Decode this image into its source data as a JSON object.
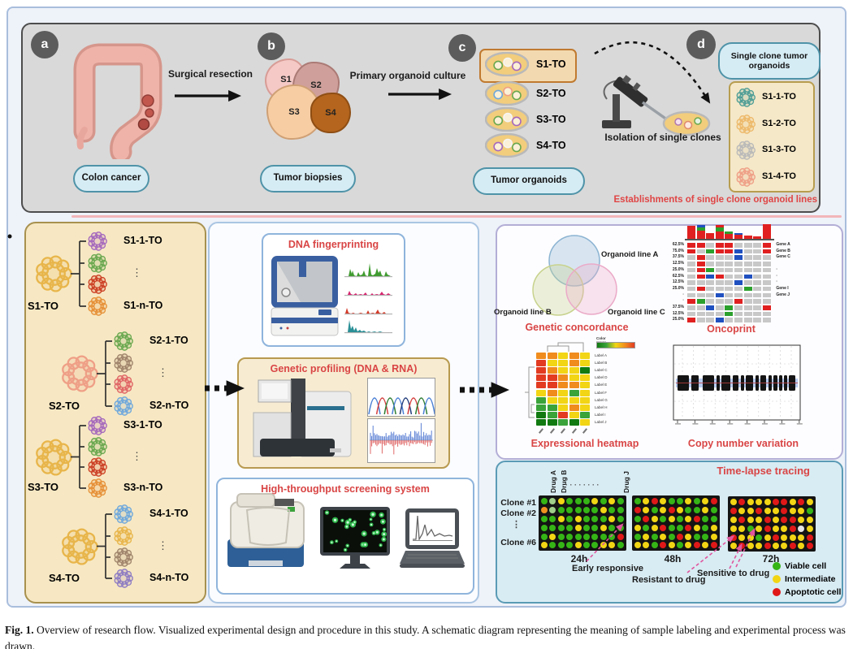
{
  "caption": {
    "label": "Fig. 1.",
    "text": "Overview of research flow. Visualized experimental design and procedure in this study. A schematic diagram representing the meaning of sample labeling and experimental process was drawn."
  },
  "colors": {
    "title_red": "#d94545",
    "pill_bg": "#d6ecf4",
    "pill_border": "#4f93a8",
    "note_red": "#e04545"
  },
  "top_panel": {
    "badge_a": "a",
    "badge_b": "b",
    "badge_c": "c",
    "badge_d": "d",
    "colon_label": "Colon cancer",
    "surgical_arrow_label": "Surgical resection",
    "biopsies_label": "Tumor biopsies",
    "biopsy_segments": [
      {
        "name": "S1",
        "color": "#f4c9c6"
      },
      {
        "name": "S2",
        "color": "#cfa09b"
      },
      {
        "name": "S3",
        "color": "#f7cda3"
      },
      {
        "name": "S4",
        "color": "#b5651d"
      }
    ],
    "culture_arrow_label": "Primary organoid culture",
    "dishes_label": "Tumor organoids",
    "dishes": [
      {
        "name": "S1-TO",
        "highlight": true
      },
      {
        "name": "S2-TO",
        "highlight": false
      },
      {
        "name": "S3-TO",
        "highlight": false
      },
      {
        "name": "S4-TO",
        "highlight": false
      }
    ],
    "isolation_label": "Isolation of single clones",
    "single_clone_pill": "Single clone tumor organoids",
    "single_clones": [
      {
        "name": "S1-1-TO",
        "color": "#4f9e96"
      },
      {
        "name": "S1-2-TO",
        "color": "#edb96a"
      },
      {
        "name": "S1-3-TO",
        "color": "#b9b9b9"
      },
      {
        "name": "S1-4-TO",
        "color": "#ef9f86"
      }
    ],
    "establishment_note": "Establishments of single clone organoid lines"
  },
  "left_panel": {
    "ellipsis": "⋮",
    "groups": [
      {
        "parent": "S1-TO",
        "parent_color": "#e8b54a",
        "child_first": "S1-1-TO",
        "child_last": "S1-n-TO",
        "child_colors": [
          "#a569bd",
          "#6aa84f",
          "#cc4125",
          "#e69138"
        ]
      },
      {
        "parent": "S2-TO",
        "parent_color": "#ef9f86",
        "child_first": "S2-1-TO",
        "child_last": "S2-n-TO",
        "child_colors": [
          "#6aa84f",
          "#a0856c",
          "#e06666",
          "#6fa8dc"
        ]
      },
      {
        "parent": "S3-TO",
        "parent_color": "#e8b54a",
        "child_first": "S3-1-TO",
        "child_last": "S3-n-TO",
        "child_colors": [
          "#a569bd",
          "#6aa84f",
          "#cc4125",
          "#e69138"
        ]
      },
      {
        "parent": "S4-TO",
        "parent_color": "#e8b54a",
        "child_first": "S4-1-TO",
        "child_last": "S4-n-TO",
        "child_colors": [
          "#6fa8dc",
          "#e8b54a",
          "#a0856c",
          "#8e7cc3"
        ]
      }
    ]
  },
  "middle_panel": {
    "dna_fingerprinting": {
      "title": "DNA fingerprinting",
      "trace_colors": [
        "#3f9b2f",
        "#d6246e",
        "#d43b2a",
        "#2a8f96"
      ]
    },
    "genetic_profiling": {
      "title": "Genetic profiling (DNA & RNA)"
    },
    "hts": {
      "title": "High-throughput screening system"
    }
  },
  "right_panel": {
    "venn": {
      "title": "Genetic concordance",
      "sets": [
        {
          "label": "Organoid line A",
          "color": "#8cb4d2"
        },
        {
          "label": "Organoid line B",
          "color": "#c8d28c"
        },
        {
          "label": "Organoid line C",
          "color": "#ebaac8"
        }
      ]
    },
    "oncoprint": {
      "title": "Oncoprint",
      "ellipsis_char": "·",
      "percentages": [
        "62.5%",
        "75.0%",
        "37.5%",
        "12.5%",
        "25.0%",
        "62.5%",
        "12.5%",
        "25.0%",
        null,
        null,
        "37.5%",
        "12.5%",
        "25.0%"
      ],
      "gene_labels": {
        "0": "Gene A",
        "1": "Gene B",
        "2": "Gene C",
        "4": "·",
        "5": "·",
        "6": "·",
        "7": "Gene I",
        "8": "Gene J"
      },
      "matrix": [
        "RRXRRXXXR",
        "RXGRRBXXR",
        "XRXXXBXXX",
        "XRXXXXXXX",
        "XRGXXXXXX",
        "XRBRXXBXX",
        "XXXXXBXXX",
        "XRXXXXGXX",
        "XXXBXXXXX",
        "RGXXXRXXX",
        "XXBXGXXXR",
        "XXXXGXXXX",
        "RXXBXXXXX"
      ],
      "bars": [
        [
          [
            "R",
            16
          ]
        ],
        [
          [
            "R",
            10
          ],
          [
            "G",
            4
          ],
          [
            "B",
            3
          ]
        ],
        [
          [
            "R",
            7
          ]
        ],
        [
          [
            "R",
            9
          ],
          [
            "G",
            5
          ],
          [
            "R",
            3
          ]
        ],
        [
          [
            "R",
            6
          ],
          [
            "G",
            3
          ]
        ],
        [
          [
            "R",
            5
          ],
          [
            "B",
            2
          ]
        ],
        [
          [
            "R",
            4
          ]
        ],
        [
          [
            "R",
            3
          ]
        ],
        [
          [
            "R",
            18
          ]
        ]
      ],
      "palette": {
        "R": "#e02020",
        "G": "#2ca02c",
        "B": "#2050c0",
        "X": "#c8c8c8"
      }
    },
    "heatmap": {
      "title": "Expressional heatmap",
      "legend_label": "Color range",
      "row_labels": [
        "Label A",
        "Label B",
        "Label C",
        "Label D",
        "Label E",
        "Label F",
        "Label G",
        "Label H",
        "Label I",
        "Label J"
      ],
      "matrix": [
        "OOYOY",
        "RYYOY",
        "ROYYD",
        "RROYY",
        "RROOY",
        "YOYGY",
        "GYYYY",
        "GGYOY",
        "DGRYG",
        "DDGDY"
      ],
      "palette": {
        "D": "#117a11",
        "G": "#3aa33a",
        "Y": "#f2d514",
        "O": "#f08c1e",
        "R": "#e23b22"
      }
    },
    "cnv": {
      "title": "Copy number variation"
    }
  },
  "time_lapse": {
    "title": "Time-lapse tracing",
    "drug_labels": [
      "Drug A",
      "Drug B",
      "Drug J"
    ],
    "drug_ellipsis": "·  ·  ·  ·  ·  ·  ·  ·",
    "clone_labels": [
      "Clone #1",
      "Clone #2",
      "Clone #6"
    ],
    "clone_ellipsis": "⋮",
    "timepoints": [
      "24h",
      "48h",
      "72h"
    ],
    "annotations": {
      "early": "Early responsive",
      "resistant": "Resistant to drug",
      "sensitive": "Sensitive to drug"
    },
    "plates": [
      [
        "GgYGGGYGYG",
        "OgGGGGGYGG",
        "GGYGYGGGYG",
        "GGGGYGGYGG",
        "GYGGGGGGGR",
        "YGGGYGGYYG"
      ],
      [
        "GYRYGGYGYR",
        "RYGYRYGGYG",
        "GRYGYGYRGG",
        "YGYRGGRYGY",
        "GYGYGRYGGY",
        "YYGRYGYRYR"
      ],
      [
        "YRYYYRRYRY",
        "RYYRYYRYYG",
        "YRYYRYRRYY",
        "YYGYRYYRWY",
        "RYYGYRYYYR",
        "YRYYRYYRYR"
      ]
    ],
    "dot_palette": {
      "G": "#35b516",
      "g": "#9fcf8a",
      "Y": "#f2d514",
      "O": "#f09020",
      "R": "#e01818",
      "W": "#e6e6e6"
    },
    "legend": [
      {
        "label": "Viable cell",
        "color": "#35b516"
      },
      {
        "label": "Intermediate",
        "color": "#f2d514"
      },
      {
        "label": "Apoptotic cell",
        "color": "#e01818"
      }
    ]
  }
}
